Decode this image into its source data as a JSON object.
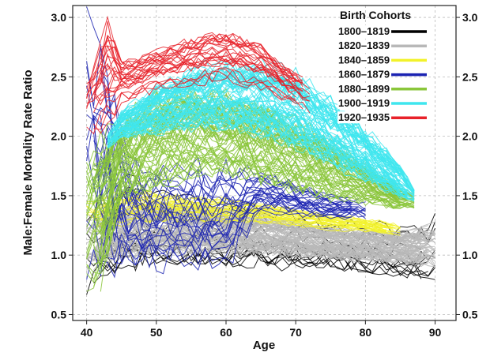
{
  "chart_data": {
    "type": "line",
    "xlabel": "Age",
    "ylabel": "Male:Female Mortality Rate Ratio",
    "xlim": [
      38,
      93
    ],
    "ylim": [
      0.45,
      3.1
    ],
    "xticks": [
      40,
      50,
      60,
      70,
      80,
      90
    ],
    "xtick_labels": [
      "40",
      "50",
      "60",
      "70",
      "80",
      "90"
    ],
    "yticks": [
      0.5,
      1.0,
      1.5,
      2.0,
      2.5,
      3.0
    ],
    "ytick_labels": [
      "0.5",
      "1.0",
      "1.5",
      "2.0",
      "2.5",
      "3.0"
    ],
    "grid": true,
    "legend": {
      "title": "Birth Cohorts",
      "placement": "top-right"
    },
    "series": [
      {
        "name": "1800–1819",
        "color": "#000000",
        "x": [
          40,
          42,
          44,
          46,
          48,
          50,
          55,
          60,
          65,
          70,
          75,
          80,
          85,
          90
        ],
        "upper": [
          1.38,
          1.45,
          1.55,
          1.65,
          1.6,
          1.5,
          1.45,
          1.4,
          1.38,
          1.35,
          1.3,
          1.25,
          1.22,
          1.3
        ],
        "lower": [
          0.75,
          0.85,
          0.92,
          0.95,
          0.97,
          0.98,
          0.98,
          0.96,
          0.95,
          0.93,
          0.92,
          0.9,
          0.87,
          0.82
        ]
      },
      {
        "name": "1820–1839",
        "color": "#b8b8b8",
        "x": [
          40,
          42,
          44,
          46,
          48,
          50,
          55,
          60,
          65,
          70,
          75,
          80,
          85,
          90
        ],
        "upper": [
          1.3,
          1.32,
          1.36,
          1.4,
          1.42,
          1.42,
          1.4,
          1.36,
          1.32,
          1.28,
          1.22,
          1.2,
          1.18,
          1.25
        ],
        "lower": [
          0.9,
          0.95,
          1.0,
          1.02,
          1.04,
          1.05,
          1.04,
          1.04,
          1.03,
          1.01,
          0.99,
          0.97,
          0.95,
          0.93
        ]
      },
      {
        "name": "1840–1859",
        "color": "#f2f22a",
        "x": [
          40,
          42,
          44,
          46,
          48,
          50,
          55,
          60,
          65,
          70,
          75,
          80,
          85
        ],
        "upper": [
          1.45,
          1.45,
          1.5,
          1.55,
          1.55,
          1.52,
          1.48,
          1.46,
          1.42,
          1.38,
          1.34,
          1.3,
          1.25
        ],
        "lower": [
          1.2,
          1.22,
          1.25,
          1.28,
          1.3,
          1.3,
          1.3,
          1.29,
          1.28,
          1.25,
          1.22,
          1.2,
          1.15
        ]
      },
      {
        "name": "1860–1879",
        "color": "#1b23b2",
        "x": [
          40,
          42,
          44,
          46,
          48,
          50,
          55,
          60,
          65,
          70,
          75,
          80
        ],
        "upper": [
          3.0,
          2.8,
          2.2,
          1.8,
          1.65,
          1.7,
          1.72,
          1.72,
          1.68,
          1.6,
          1.5,
          1.45
        ],
        "lower": [
          0.8,
          0.8,
          0.8,
          0.85,
          0.88,
          0.9,
          0.9,
          0.88,
          1.35,
          1.32,
          1.3,
          1.3
        ]
      },
      {
        "name": "1880–1899",
        "color": "#8ac63a",
        "x": [
          40,
          42,
          45,
          50,
          55,
          60,
          65,
          70,
          75,
          80,
          85,
          87
        ],
        "upper": [
          1.7,
          1.9,
          2.1,
          2.3,
          2.35,
          2.3,
          2.25,
          2.1,
          1.95,
          1.75,
          1.55,
          1.5
        ],
        "lower": [
          0.75,
          0.8,
          1.5,
          1.6,
          1.7,
          1.7,
          1.65,
          1.55,
          1.5,
          1.45,
          1.4,
          1.4
        ]
      },
      {
        "name": "1900–1919",
        "color": "#3fe6ee",
        "x": [
          43,
          45,
          50,
          55,
          60,
          65,
          70,
          75,
          80,
          85,
          87
        ],
        "upper": [
          2.0,
          2.2,
          2.4,
          2.55,
          2.6,
          2.6,
          2.5,
          2.3,
          2.05,
          1.75,
          1.55
        ],
        "lower": [
          1.9,
          2.0,
          2.05,
          2.1,
          2.1,
          2.05,
          1.95,
          1.8,
          1.65,
          1.5,
          1.45
        ]
      },
      {
        "name": "1920–1935",
        "color": "#e8222a",
        "x": [
          40,
          43,
          45,
          50,
          55,
          60,
          63,
          66,
          69,
          72
        ],
        "upper": [
          2.4,
          2.9,
          2.6,
          2.7,
          2.8,
          2.85,
          2.8,
          2.7,
          2.55,
          2.45
        ],
        "lower": [
          2.0,
          2.1,
          2.3,
          2.4,
          2.45,
          2.5,
          2.45,
          2.4,
          2.3,
          2.2
        ]
      }
    ]
  }
}
